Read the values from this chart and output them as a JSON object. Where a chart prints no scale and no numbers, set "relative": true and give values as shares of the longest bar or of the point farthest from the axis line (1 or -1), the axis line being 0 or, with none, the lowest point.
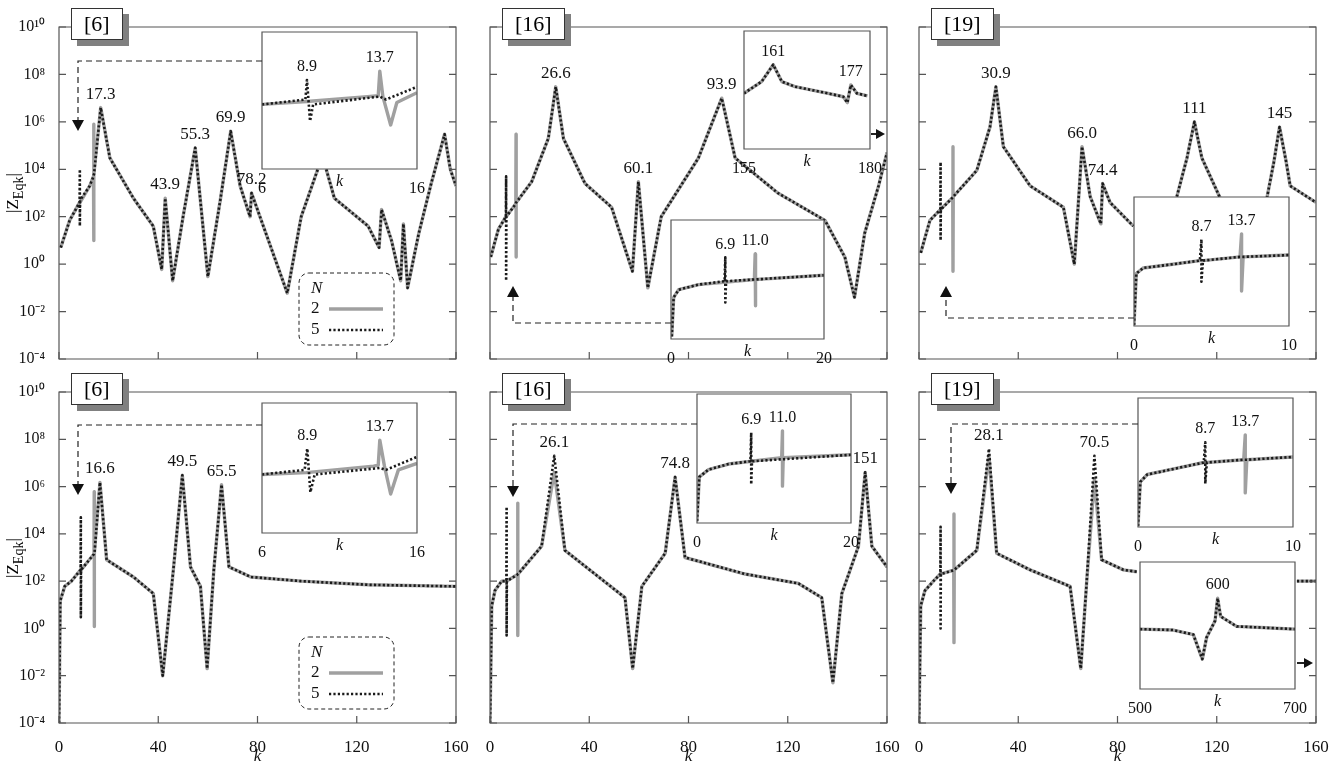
{
  "chart_data": [
    {
      "type": "line",
      "title": "[6]",
      "ylabel": "|Z$_{Eqk}$|",
      "legend_title": "N",
      "legend": "bottom right",
      "log": "y",
      "tick_labels": "y",
      "xlim": [
        0,
        160
      ],
      "xticks": [
        {
          "value": 0,
          "label": null
        },
        {
          "value": 40,
          "label": null
        },
        {
          "value": 80,
          "label": null
        },
        {
          "value": 120,
          "label": null
        },
        {
          "value": 160,
          "label": null
        }
      ],
      "ylim": [
        0.0001,
        10000000000
      ],
      "yticks": [
        {
          "value": 0.0001,
          "label": "10⁻⁴"
        },
        {
          "value": 0.01,
          "label": "10⁻²"
        },
        {
          "value": 1,
          "label": "10⁰"
        },
        {
          "value": 100,
          "label": "10²"
        },
        {
          "value": 10000,
          "label": "10⁴"
        },
        {
          "value": 1000000,
          "label": "10⁶"
        },
        {
          "value": 100000000,
          "label": "10⁸"
        },
        {
          "value": 10000000000,
          "label": "10¹⁰"
        }
      ],
      "x": [
        0.7,
        4.3,
        8.3,
        8.4,
        8.4,
        8.5,
        12.4,
        13.9,
        14,
        14,
        14.1,
        16.8,
        20.5,
        30,
        38,
        41.4,
        42.8,
        45.8,
        50,
        54.9,
        60,
        65,
        69.2,
        73,
        77,
        77.6,
        81,
        92,
        97.6,
        104.3,
        105.7,
        107.7,
        111,
        124.6,
        129,
        130,
        134,
        137.7,
        138.8,
        140.5,
        145,
        150,
        155.4,
        157.7,
        160
      ],
      "series": [
        {
          "name": "2",
          "color": "#a0a0a0",
          "line_style": "solid",
          "values": [
            5,
            70,
            400,
            400,
            400,
            400,
            2000,
            5000,
            800000,
            10,
            6000,
            4000000,
            30000,
            600,
            40,
            0.6,
            600,
            0.2,
            100,
            80000,
            0.3,
            500,
            400000,
            2000,
            100,
            1000,
            100,
            0.06,
            100,
            10000,
            null,
            10000,
            600,
            40,
            5,
            200,
            10,
            0.2,
            50,
            0.1,
            20,
            2500,
            300000,
            10000,
            2000
          ]
        },
        {
          "name": "5",
          "color": "#1a1a1a",
          "line_style": "dotted",
          "values": [
            5,
            70,
            400,
            10000,
            40,
            500,
            2000,
            5000,
            6000,
            6000,
            6000,
            4000000,
            30000,
            600,
            40,
            0.6,
            600,
            0.2,
            100,
            80000,
            0.3,
            500,
            400000,
            2000,
            100,
            1000,
            100,
            0.06,
            100,
            10000,
            null,
            10000,
            600,
            40,
            5,
            200,
            10,
            0.2,
            50,
            0.1,
            20,
            2500,
            300000,
            10000,
            2000
          ]
        }
      ],
      "annotations": [
        {
          "text": "17.3",
          "x": 16.8,
          "y": 4000000
        },
        {
          "text": "43.9",
          "x": 42.8,
          "y": 600
        },
        {
          "text": "55.3",
          "x": 54.9,
          "y": 80000
        },
        {
          "text": "69.9",
          "x": 69.2,
          "y": 400000
        },
        {
          "text": "78.2",
          "x": 77.6,
          "y": 1000
        }
      ]
    },
    {
      "type": "line",
      "relative": true,
      "tick_labels": "x",
      "xlabel": "k",
      "xlim": [
        6,
        16
      ],
      "xticks": [
        6,
        16
      ],
      "series": [
        {
          "color": "#a0a0a0",
          "line_style": "solid",
          "x": [
            6,
            8.9,
            12.8,
            13.5,
            13.6,
            13.8,
            14.3,
            14.7,
            16
          ],
          "values": [
            0.66,
            0.69,
            0.74,
            0.75,
            1,
            0.74,
            0.45,
            0.68,
            0.78
          ]
        },
        {
          "color": "#1a1a1a",
          "line_style": "dotted",
          "x": [
            6,
            8.8,
            8.9,
            9.1,
            9.3,
            13.6,
            14,
            16
          ],
          "values": [
            0.66,
            0.71,
            0.91,
            0.49,
            0.66,
            0.74,
            0.71,
            0.84
          ]
        }
      ],
      "annotations": [
        {
          "text": "8.9",
          "x": 8.9,
          "y": 0.91
        },
        {
          "text": "13.7",
          "x": 13.6,
          "y": 1
        }
      ]
    },
    {
      "type": "line",
      "title": "[16]",
      "log": "y",
      "tick_labels": false,
      "xlim": [
        0,
        160
      ],
      "xticks": [
        {
          "value": 0,
          "label": null
        },
        {
          "value": 40,
          "label": null
        },
        {
          "value": 80,
          "label": null
        },
        {
          "value": 120,
          "label": null
        },
        {
          "value": 160,
          "label": null
        }
      ],
      "ylim": [
        0.0001,
        10000000000
      ],
      "yticks": [
        {
          "value": 0.0001,
          "label": null
        },
        {
          "value": 0.01,
          "label": null
        },
        {
          "value": 1,
          "label": null
        },
        {
          "value": 100,
          "label": null
        },
        {
          "value": 10000,
          "label": null
        },
        {
          "value": 1000000,
          "label": null
        },
        {
          "value": 100000000,
          "label": null
        },
        {
          "value": 10000000000,
          "label": null
        }
      ],
      "x": [
        0.3,
        3.4,
        6.4,
        6.5,
        6.5,
        6.6,
        10.4,
        10.5,
        10.5,
        10.6,
        16.8,
        23.5,
        26.5,
        29.6,
        38.3,
        49,
        57.4,
        59.8,
        63.6,
        69,
        84,
        93.4,
        98.8,
        116,
        135,
        143,
        146.9,
        151,
        156.6,
        160
      ],
      "series": [
        {
          "color": "#a0a0a0",
          "line_style": "solid",
          "values": [
            2,
            30,
            100,
            100,
            100,
            100,
            350,
            300000,
            2,
            400,
            3000,
            200000,
            30000000,
            200000,
            2500,
            250,
            0.5,
            3000,
            0.1,
            100,
            30000,
            10000000,
            30000,
            1000,
            70,
            2,
            0.04,
            20,
            2000,
            50000
          ]
        },
        {
          "color": "#1a1a1a",
          "line_style": "dotted",
          "values": [
            2,
            30,
            100,
            5000,
            0.2,
            100,
            350,
            400,
            400,
            400,
            3000,
            200000,
            30000000,
            200000,
            2500,
            250,
            0.5,
            3000,
            0.1,
            100,
            30000,
            10000000,
            30000,
            1000,
            70,
            2,
            0.04,
            20,
            2000,
            50000
          ]
        }
      ],
      "annotations": [
        {
          "text": "26.6",
          "x": 26.5,
          "y": 30000000
        },
        {
          "text": "60.1",
          "x": 59.8,
          "y": 3000
        },
        {
          "text": "93.9",
          "x": 93.4,
          "y": 10000000
        }
      ]
    },
    {
      "type": "line",
      "relative": true,
      "tick_labels": "x",
      "xlabel": "k",
      "xlim": [
        155,
        180
      ],
      "xticks": [
        155,
        180
      ],
      "x": [
        155,
        158.5,
        160.8,
        162.5,
        165.1,
        171.7,
        174.7,
        175.5,
        176.2,
        177.4,
        179.5
      ],
      "series": [
        {
          "color": "#a0a0a0",
          "line_style": "solid",
          "values": [
            0.66,
            0.8,
            1,
            0.8,
            0.74,
            0.66,
            0.62,
            0.55,
            0.76,
            0.66,
            0.63
          ]
        },
        {
          "color": "#1a1a1a",
          "line_style": "dotted",
          "values": [
            0.66,
            0.8,
            1,
            0.8,
            0.74,
            0.66,
            0.62,
            0.55,
            0.76,
            0.66,
            0.63
          ]
        }
      ],
      "annotations": [
        {
          "text": "161",
          "x": 160.8,
          "y": 1
        },
        {
          "text": "177",
          "x": 176.2,
          "y": 0.76
        }
      ]
    },
    {
      "type": "line",
      "relative": true,
      "tick_labels": "x",
      "xlabel": "k",
      "xlim": [
        0,
        20
      ],
      "xticks": [
        0,
        20
      ],
      "series": [
        {
          "color": "#a0a0a0",
          "line_style": "solid",
          "x": [
            0.1,
            0.35,
            1,
            3.6,
            10.9,
            11,
            11,
            11.1,
            20
          ],
          "values": [
            0.03,
            0.49,
            0.58,
            0.64,
            0.7,
            1,
            0.39,
            0.7,
            0.75
          ]
        },
        {
          "color": "#1a1a1a",
          "line_style": "dotted",
          "x": [
            0.1,
            0.35,
            1,
            3.6,
            7,
            7.1,
            7.1,
            7.2,
            20
          ],
          "values": [
            0.03,
            0.49,
            0.58,
            0.64,
            0.68,
            0.96,
            0.43,
            0.68,
            0.75
          ]
        }
      ],
      "annotations": [
        {
          "text": "6.9",
          "x": 7.1,
          "y": 0.96
        },
        {
          "text": "11.0",
          "x": 11,
          "y": 1
        }
      ]
    },
    {
      "type": "line",
      "title": "[19]",
      "log": "y",
      "tick_labels": false,
      "xlim": [
        0,
        160
      ],
      "xticks": [
        {
          "value": 0,
          "label": null
        },
        {
          "value": 40,
          "label": null
        },
        {
          "value": 80,
          "label": null
        },
        {
          "value": 120,
          "label": null
        },
        {
          "value": 160,
          "label": null
        }
      ],
      "ylim": [
        0.0001,
        10000000000
      ],
      "yticks": [
        {
          "value": 0.0001,
          "label": null
        },
        {
          "value": 0.01,
          "label": null
        },
        {
          "value": 1,
          "label": null
        },
        {
          "value": 100,
          "label": null
        },
        {
          "value": 10000,
          "label": null
        },
        {
          "value": 1000000,
          "label": null
        },
        {
          "value": 100000000,
          "label": null
        },
        {
          "value": 10000000000,
          "label": null
        }
      ],
      "x": [
        0.7,
        4.4,
        8.6,
        8.7,
        8.7,
        8.8,
        13.6,
        13.7,
        13.7,
        13.8,
        23.3,
        28.6,
        31,
        34,
        44.8,
        58.2,
        62.6,
        65.7,
        69,
        73.3,
        74,
        77,
        86.4,
        95,
        103.9,
        108,
        111,
        114,
        121.4,
        130,
        140.2,
        143,
        145.3,
        148,
        149.6,
        160
      ],
      "series": [
        {
          "color": "#a0a0a0",
          "line_style": "solid",
          "values": [
            3,
            70,
            200,
            200,
            200,
            200,
            650,
            90000,
            0.5,
            700,
            9000,
            600000,
            30000000,
            90000,
            2000,
            250,
            1,
            90000,
            700,
            50,
            2500,
            400,
            40,
            null,
            700,
            30000,
            1000000,
            30000,
            600,
            null,
            600,
            20000,
            600000,
            20000,
            2000,
            400
          ]
        },
        {
          "color": "#1a1a1a",
          "line_style": "dotted",
          "values": [
            3,
            70,
            200,
            20000,
            10,
            200,
            650,
            700,
            700,
            700,
            9000,
            600000,
            30000000,
            90000,
            2000,
            250,
            1,
            90000,
            700,
            50,
            2500,
            400,
            40,
            null,
            700,
            30000,
            1000000,
            30000,
            600,
            null,
            600,
            20000,
            600000,
            20000,
            2000,
            400
          ]
        }
      ],
      "annotations": [
        {
          "text": "30.9",
          "x": 31,
          "y": 30000000
        },
        {
          "text": "66.0",
          "x": 65.7,
          "y": 90000
        },
        {
          "text": "74.4",
          "x": 74,
          "y": 2500
        },
        {
          "text": "111",
          "x": 111,
          "y": 1000000
        },
        {
          "text": "145",
          "x": 145.3,
          "y": 600000
        }
      ]
    },
    {
      "type": "line",
      "relative": true,
      "tick_labels": "x",
      "xlabel": "k",
      "xlim": [
        0,
        10
      ],
      "xticks": [
        0,
        10
      ],
      "x": [
        0,
        0.15,
        0.6,
        2.5,
        4.25,
        4.35,
        4.35,
        4.45,
        6.84,
        6.94,
        6.94,
        7.04,
        10
      ],
      "series": [
        {
          "color": "#a0a0a0",
          "line_style": "solid",
          "values": [
            0.01,
            0.57,
            0.63,
            0.67,
            0.71,
            0.71,
            0.71,
            0.71,
            0.75,
            1,
            0.38,
            0.75,
            0.77
          ]
        },
        {
          "color": "#1a1a1a",
          "line_style": "dotted",
          "values": [
            0.01,
            0.57,
            0.63,
            0.67,
            0.71,
            0.94,
            0.48,
            0.71,
            0.75,
            0.75,
            0.75,
            0.75,
            0.77
          ]
        }
      ],
      "annotations": [
        {
          "text": "8.7",
          "x": 4.35,
          "y": 0.94
        },
        {
          "text": "13.7",
          "x": 6.94,
          "y": 1
        }
      ]
    },
    {
      "type": "line",
      "title": "[6]",
      "ylabel": "|Z$_{Eqk}$|",
      "xlabel": "k",
      "legend_title": "N",
      "legend": "bottom right",
      "log": "y",
      "xlim": [
        0,
        160
      ],
      "xticks": [
        0,
        40,
        80,
        120,
        160
      ],
      "ylim": [
        0.0001,
        10000000000
      ],
      "yticks": [
        {
          "value": 0.0001,
          "label": "10⁻⁴"
        },
        {
          "value": 0.01,
          "label": "10⁻²"
        },
        {
          "value": 1,
          "label": "10⁰"
        },
        {
          "value": 100,
          "label": "10²"
        },
        {
          "value": 10000,
          "label": "10⁴"
        },
        {
          "value": 1000000,
          "label": "10⁶"
        },
        {
          "value": 100000000,
          "label": "10⁸"
        },
        {
          "value": 10000000000,
          "label": "10¹⁰"
        }
      ],
      "x": [
        0,
        0.5,
        2.3,
        5,
        8.7,
        8.8,
        8.8,
        8.9,
        14.1,
        14.2,
        14.2,
        14.3,
        16.5,
        19.2,
        30,
        38,
        41.8,
        46.2,
        49.7,
        53,
        57,
        59.7,
        62.4,
        65.5,
        68.5,
        77.3,
        97.6,
        124.6,
        160
      ],
      "series": [
        {
          "name": "2",
          "color": "#a0a0a0",
          "line_style": "solid",
          "values": [
            0.0001,
            15,
            60,
            100,
            300,
            300,
            300,
            300,
            1400,
            600000,
            1.2,
            1500,
            1500000,
            800,
            150,
            30,
            0.01,
            400,
            3000000,
            400,
            60,
            0.02,
            300,
            1200000,
            400,
            150,
            100,
            70,
            60
          ]
        },
        {
          "name": "5",
          "color": "#1a1a1a",
          "line_style": "dotted",
          "values": [
            0.0001,
            15,
            60,
            100,
            300,
            50000,
            3,
            300,
            1400,
            1500,
            1500,
            1500,
            1500000,
            800,
            150,
            30,
            0.01,
            400,
            3000000,
            400,
            60,
            0.02,
            300,
            1200000,
            400,
            150,
            100,
            70,
            60
          ]
        }
      ],
      "annotations": [
        {
          "text": "16.6",
          "x": 16.5,
          "y": 1500000
        },
        {
          "text": "49.5",
          "x": 49.7,
          "y": 3000000
        },
        {
          "text": "65.5",
          "x": 65.5,
          "y": 1200000
        }
      ]
    },
    {
      "type": "line",
      "relative": true,
      "tick_labels": "x",
      "xlabel": "k",
      "xlim": [
        6,
        16
      ],
      "xticks": [
        6,
        16
      ],
      "series": [
        {
          "color": "#a0a0a0",
          "line_style": "solid",
          "x": [
            6,
            8.86,
            13.2,
            13.5,
            13.6,
            13.9,
            14.3,
            14.8,
            16
          ],
          "values": [
            0.63,
            0.65,
            0.72,
            0.73,
            1,
            0.72,
            0.42,
            0.68,
            0.75
          ]
        },
        {
          "color": "#1a1a1a",
          "line_style": "dotted",
          "x": [
            6,
            8.75,
            8.92,
            9.12,
            9.4,
            13.6,
            14,
            16
          ],
          "values": [
            0.63,
            0.68,
            0.91,
            0.44,
            0.63,
            0.7,
            0.68,
            0.82
          ]
        }
      ],
      "annotations": [
        {
          "text": "8.9",
          "x": 8.92,
          "y": 0.91
        },
        {
          "text": "13.7",
          "x": 13.6,
          "y": 1
        }
      ]
    },
    {
      "type": "line",
      "title": "[16]",
      "xlabel": "k",
      "log": "y",
      "tick_labels": "x",
      "xlim": [
        0,
        160
      ],
      "xticks": [
        0,
        40,
        80,
        120,
        160
      ],
      "ylim": [
        0.0001,
        10000000000
      ],
      "yticks": [
        {
          "value": 0.0001,
          "label": null
        },
        {
          "value": 0.01,
          "label": null
        },
        {
          "value": 1,
          "label": null
        },
        {
          "value": 100,
          "label": null
        },
        {
          "value": 10000,
          "label": null
        },
        {
          "value": 1000000,
          "label": null
        },
        {
          "value": 100000000,
          "label": null
        },
        {
          "value": 10000000000,
          "label": null
        }
      ],
      "x": [
        0,
        0.7,
        2,
        4.7,
        6.6,
        6.7,
        6.7,
        6.8,
        11.1,
        11.2,
        11.2,
        11.3,
        20.8,
        25.9,
        30.2,
        42.3,
        54.4,
        57.5,
        61.2,
        70.6,
        74.6,
        78.6,
        102.8,
        124.3,
        133.7,
        138.2,
        141.8,
        148.5,
        151.2,
        153.9,
        160
      ],
      "series": [
        {
          "color": "#a0a0a0",
          "line_style": "solid",
          "values": [
            0.0001,
            9,
            40,
            100,
            100,
            100,
            100,
            100,
            190,
            200000,
            0.5,
            200,
            3000,
            4000000,
            2000,
            200,
            20,
            0.02,
            60,
            1500,
            2500000,
            1000,
            200,
            80,
            20,
            0.005,
            30,
            3000,
            4000000,
            3000,
            400
          ]
        },
        {
          "color": "#1a1a1a",
          "line_style": "dotted",
          "values": [
            0.0001,
            9,
            40,
            100,
            100,
            140000,
            0.5,
            100,
            190,
            200,
            200,
            200,
            3000,
            20000000,
            2000,
            200,
            20,
            0.02,
            60,
            1500,
            2500000,
            1000,
            200,
            80,
            20,
            0.005,
            30,
            3000,
            4000000,
            3000,
            400
          ]
        }
      ],
      "annotations": [
        {
          "text": "26.1",
          "x": 25.9,
          "y": 20000000
        },
        {
          "text": "74.8",
          "x": 74.6,
          "y": 2500000
        },
        {
          "text": "151",
          "x": 151.2,
          "y": 4000000
        }
      ]
    },
    {
      "type": "line",
      "relative": true,
      "tick_labels": "x",
      "xlabel": "k",
      "xlim": [
        0,
        20
      ],
      "xticks": [
        0,
        20
      ],
      "series": [
        {
          "color": "#a0a0a0",
          "line_style": "solid",
          "x": [
            0,
            0.3,
            1.5,
            4.1,
            11,
            11.1,
            11.1,
            11.2,
            20
          ],
          "values": [
            0.02,
            0.5,
            0.58,
            0.64,
            0.71,
            1,
            0.4,
            0.71,
            0.74
          ]
        },
        {
          "color": "#1a1a1a",
          "line_style": "dotted",
          "x": [
            0,
            0.3,
            1.5,
            4.1,
            6.94,
            7.04,
            7.04,
            7.14,
            20
          ],
          "values": [
            0.02,
            0.5,
            0.58,
            0.64,
            0.67,
            0.98,
            0.42,
            0.67,
            0.74
          ]
        }
      ],
      "annotations": [
        {
          "text": "6.9",
          "x": 7.04,
          "y": 0.98
        },
        {
          "text": "11.0",
          "x": 11.1,
          "y": 1
        }
      ]
    },
    {
      "type": "line",
      "title": "[19]",
      "xlabel": "k",
      "log": "y",
      "tick_labels": "x",
      "xlim": [
        0,
        160
      ],
      "xticks": [
        0,
        40,
        80,
        120,
        160
      ],
      "ylim": [
        0.0001,
        10000000000
      ],
      "yticks": [
        {
          "value": 0.0001,
          "label": null
        },
        {
          "value": 0.01,
          "label": null
        },
        {
          "value": 1,
          "label": null
        },
        {
          "value": 100,
          "label": null
        },
        {
          "value": 10000,
          "label": null
        },
        {
          "value": 1000000,
          "label": null
        },
        {
          "value": 100000000,
          "label": null
        },
        {
          "value": 10000000000,
          "label": null
        }
      ],
      "x": [
        0,
        0.7,
        2.4,
        5.8,
        8.6,
        8.7,
        8.7,
        8.8,
        14,
        14.1,
        14.1,
        14.2,
        23.3,
        28.2,
        31.3,
        44.8,
        60.9,
        65.2,
        67.6,
        70.7,
        73.6,
        82.4,
        87.8,
        120,
        152.3,
        160
      ],
      "series": [
        {
          "color": "#a0a0a0",
          "line_style": "solid",
          "values": [
            0.0001,
            9,
            40,
            100,
            200,
            200,
            200,
            200,
            290,
            70000,
            0.25,
            300,
            2000,
            20000000,
            1500,
            300,
            60,
            0.02,
            100,
            2000000,
            800,
            300,
            250,
            null,
            100,
            100
          ]
        },
        {
          "color": "#1a1a1a",
          "line_style": "dotted",
          "values": [
            0.0001,
            9,
            40,
            100,
            200,
            20000,
            1,
            200,
            290,
            300,
            300,
            300,
            2000,
            40000000,
            1500,
            300,
            60,
            0.02,
            100,
            20000000,
            800,
            300,
            250,
            null,
            100,
            100
          ]
        }
      ],
      "annotations": [
        {
          "text": "28.1",
          "x": 28.2,
          "y": 40000000
        },
        {
          "text": "70.5",
          "x": 70.7,
          "y": 20000000
        }
      ]
    },
    {
      "type": "line",
      "relative": true,
      "tick_labels": "x",
      "xlabel": "k",
      "xlim": [
        0,
        10
      ],
      "xticks": [
        0,
        10
      ],
      "x": [
        0,
        0.15,
        0.6,
        2.3,
        4.24,
        4.34,
        4.34,
        4.44,
        6.82,
        6.92,
        6.92,
        7.02,
        10
      ],
      "series": [
        {
          "color": "#a0a0a0",
          "line_style": "solid",
          "values": [
            0.01,
            0.49,
            0.57,
            0.63,
            0.7,
            0.7,
            0.7,
            0.7,
            0.73,
            1,
            0.37,
            0.73,
            0.76
          ]
        },
        {
          "color": "#1a1a1a",
          "line_style": "dotted",
          "values": [
            0.01,
            0.49,
            0.57,
            0.63,
            0.7,
            0.92,
            0.47,
            0.7,
            0.73,
            0.73,
            0.73,
            0.73,
            0.76
          ]
        }
      ],
      "annotations": [
        {
          "text": "8.7",
          "x": 4.34,
          "y": 0.92
        },
        {
          "text": "13.7",
          "x": 6.92,
          "y": 1
        }
      ]
    },
    {
      "type": "line",
      "relative": true,
      "tick_labels": "x",
      "xlabel": "k",
      "xlim": [
        500,
        700
      ],
      "xticks": [
        500,
        700
      ],
      "x": [
        500,
        543,
        568.8,
        580.4,
        586,
        596.8,
        600.2,
        604,
        624.7,
        700
      ],
      "series": [
        {
          "color": "#a0a0a0",
          "line_style": "solid",
          "values": [
            0.66,
            0.65,
            0.6,
            0.33,
            0.57,
            0.75,
            1,
            0.8,
            0.69,
            0.66
          ]
        },
        {
          "color": "#1a1a1a",
          "line_style": "dotted",
          "values": [
            0.66,
            0.65,
            0.6,
            0.33,
            0.57,
            0.75,
            1,
            0.8,
            0.69,
            0.66
          ]
        }
      ],
      "annotations": [
        {
          "text": "600",
          "x": 600.2,
          "y": 1
        }
      ]
    }
  ]
}
